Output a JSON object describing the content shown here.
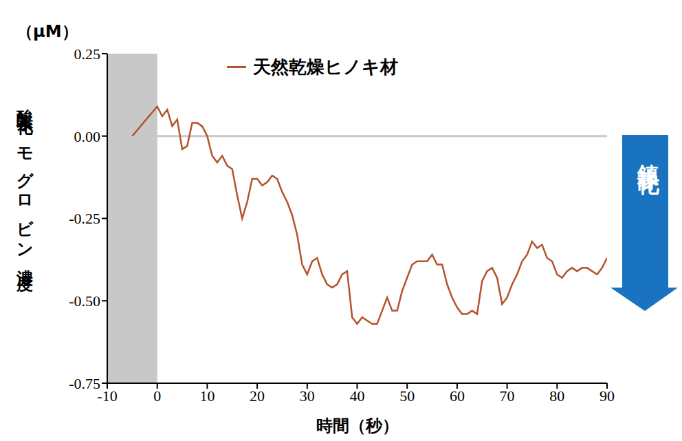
{
  "chart_data": {
    "type": "line",
    "y_label": "酸素化ヘモグロビン濃度",
    "y_unit": "（μM）",
    "x_label": "時間（秒）",
    "annotation": "鎮静化",
    "x": [
      -5,
      0,
      1,
      2,
      3,
      4,
      5,
      6,
      7,
      8,
      9,
      10,
      11,
      12,
      13,
      14,
      15,
      16,
      17,
      18,
      19,
      20,
      21,
      22,
      23,
      24,
      25,
      26,
      27,
      28,
      29,
      30,
      31,
      32,
      33,
      34,
      35,
      36,
      37,
      38,
      39,
      40,
      41,
      42,
      43,
      44,
      45,
      46,
      47,
      48,
      49,
      50,
      51,
      52,
      53,
      54,
      55,
      56,
      57,
      58,
      59,
      60,
      61,
      62,
      63,
      64,
      65,
      66,
      67,
      68,
      69,
      70,
      71,
      72,
      73,
      74,
      75,
      76,
      77,
      78,
      79,
      80,
      81,
      82,
      83,
      84,
      85,
      86,
      87,
      88,
      89,
      90
    ],
    "series": [
      {
        "name": "天然乾燥ヒノキ材",
        "color": "#b5522f",
        "values": [
          0.0,
          0.09,
          0.06,
          0.08,
          0.03,
          0.05,
          -0.04,
          -0.03,
          0.04,
          0.04,
          0.03,
          0.0,
          -0.06,
          -0.08,
          -0.06,
          -0.09,
          -0.1,
          -0.18,
          -0.25,
          -0.2,
          -0.13,
          -0.13,
          -0.15,
          -0.14,
          -0.12,
          -0.13,
          -0.17,
          -0.2,
          -0.24,
          -0.3,
          -0.39,
          -0.42,
          -0.38,
          -0.37,
          -0.42,
          -0.45,
          -0.46,
          -0.45,
          -0.42,
          -0.41,
          -0.55,
          -0.57,
          -0.55,
          -0.56,
          -0.57,
          -0.57,
          -0.53,
          -0.49,
          -0.53,
          -0.53,
          -0.47,
          -0.43,
          -0.39,
          -0.38,
          -0.38,
          -0.38,
          -0.36,
          -0.39,
          -0.39,
          -0.45,
          -0.49,
          -0.52,
          -0.54,
          -0.54,
          -0.53,
          -0.54,
          -0.44,
          -0.41,
          -0.4,
          -0.43,
          -0.51,
          -0.49,
          -0.45,
          -0.42,
          -0.38,
          -0.36,
          -0.32,
          -0.34,
          -0.33,
          -0.37,
          -0.38,
          -0.42,
          -0.43,
          -0.41,
          -0.4,
          -0.41,
          -0.4,
          -0.4,
          -0.41,
          -0.42,
          -0.4,
          -0.37
        ]
      }
    ],
    "xlim": [
      -10,
      90
    ],
    "xticks": [
      -10,
      0,
      10,
      20,
      30,
      40,
      50,
      60,
      70,
      80,
      90
    ],
    "ylim": [
      -0.75,
      0.25
    ],
    "yticks": [
      {
        "value": -0.75,
        "label": "-0.75"
      },
      {
        "value": -0.5,
        "label": "-0.50"
      },
      {
        "value": -0.25,
        "label": "-0.25"
      },
      {
        "value": 0,
        "label": "0.00"
      },
      {
        "value": 0.25,
        "label": "0.25"
      }
    ],
    "shaded_region": [
      -10,
      0
    ],
    "reference_line": 0,
    "grid": false,
    "legend": "top"
  }
}
